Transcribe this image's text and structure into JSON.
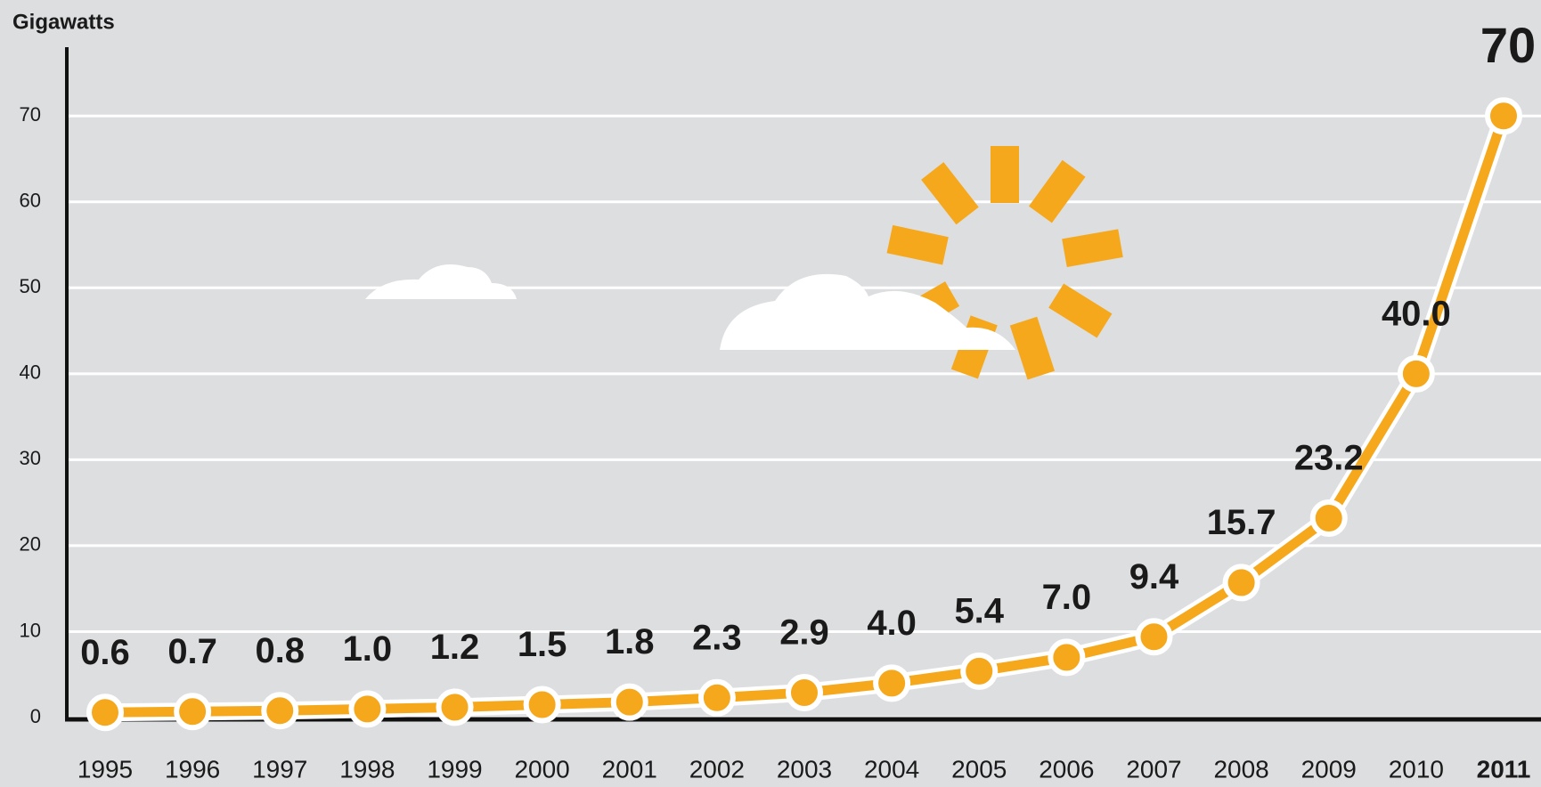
{
  "chart_data": {
    "type": "line",
    "y_label": "Gigawatts",
    "categories": [
      "1995",
      "1996",
      "1997",
      "1998",
      "1999",
      "2000",
      "2001",
      "2002",
      "2003",
      "2004",
      "2005",
      "2006",
      "2007",
      "2008",
      "2009",
      "2010",
      "2011"
    ],
    "values": [
      0.6,
      0.7,
      0.8,
      1.0,
      1.2,
      1.5,
      1.8,
      2.3,
      2.9,
      4.0,
      5.4,
      7.0,
      9.4,
      15.7,
      23.2,
      40.0,
      70
    ],
    "value_labels": [
      "0.6",
      "0.7",
      "0.8",
      "1.0",
      "1.2",
      "1.5",
      "1.8",
      "2.3",
      "2.9",
      "4.0",
      "5.4",
      "7.0",
      "9.4",
      "15.7",
      "23.2",
      "40.0",
      "70"
    ],
    "color": "#f5a81c",
    "ylim": [
      0,
      78
    ],
    "yticks": [
      0,
      10,
      20,
      30,
      40,
      50,
      60,
      70
    ],
    "grid": true
  }
}
